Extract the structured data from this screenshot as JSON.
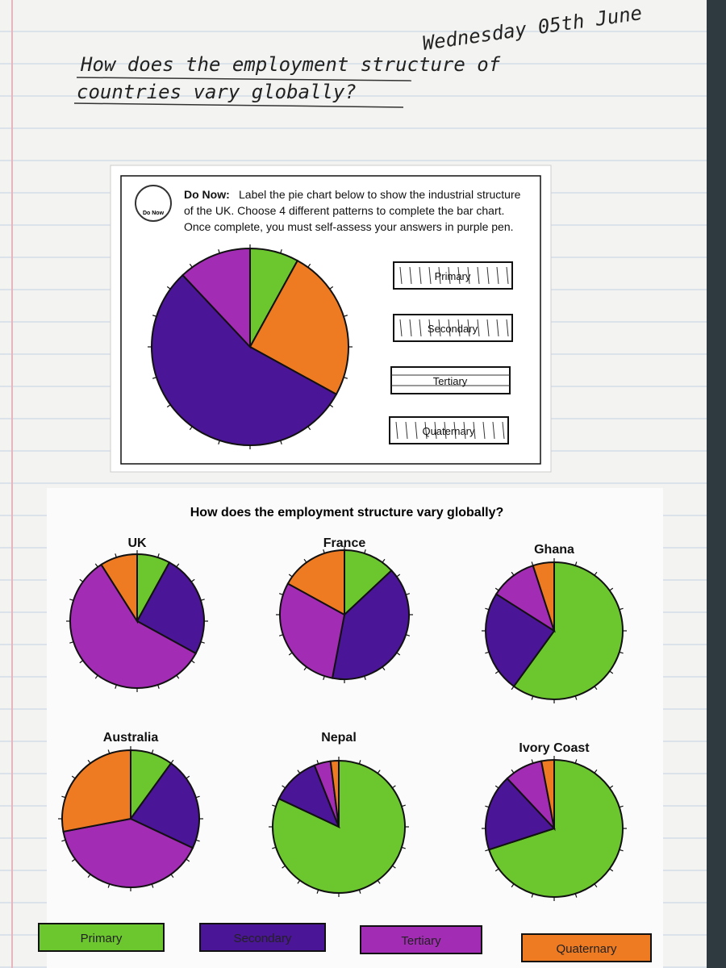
{
  "header": {
    "date": "Wednesday 05th June",
    "title_lines": [
      "How does the employment structure of",
      "countries vary globally?"
    ]
  },
  "do_now": {
    "icon_text": "Do Now",
    "label": "Do Now:",
    "lines": [
      "Label the pie chart below to show the industrial structure",
      "of the UK. Choose 4 different patterns to complete the bar chart.",
      "Once complete, you must self-assess your answers in purple pen."
    ],
    "pattern_labels": [
      "Primary",
      "Secondary",
      "Tertiary",
      "Quaternary"
    ]
  },
  "worksheet": {
    "title": "How does the employment structure vary globally?"
  },
  "legend": [
    {
      "label": "Primary",
      "color": "#6cc62e"
    },
    {
      "label": "Secondary",
      "color": "#4a1596"
    },
    {
      "label": "Tertiary",
      "color": "#a32cb4"
    },
    {
      "label": "Quaternary",
      "color": "#ee7a22"
    }
  ],
  "chart_data": [
    {
      "type": "pie",
      "values": [
        8,
        25,
        55,
        12
      ],
      "colors": [
        "#6cc62e",
        "#ee7a22",
        "#4a1596",
        "#a32cb4"
      ]
    },
    {
      "type": "pie",
      "title": "UK",
      "values": [
        8,
        25,
        58,
        9
      ],
      "colors": [
        "#6cc62e",
        "#4a1596",
        "#a32cb4",
        "#ee7a22"
      ]
    },
    {
      "type": "pie",
      "title": "France",
      "values": [
        13,
        40,
        30,
        17
      ],
      "colors": [
        "#6cc62e",
        "#4a1596",
        "#a32cb4",
        "#ee7a22"
      ]
    },
    {
      "type": "pie",
      "title": "Ghana",
      "values": [
        60,
        24,
        11,
        5
      ],
      "colors": [
        "#6cc62e",
        "#4a1596",
        "#a32cb4",
        "#ee7a22"
      ]
    },
    {
      "type": "pie",
      "title": "Australia",
      "values": [
        10,
        22,
        40,
        28
      ],
      "colors": [
        "#6cc62e",
        "#4a1596",
        "#a32cb4",
        "#ee7a22"
      ]
    },
    {
      "type": "pie",
      "title": "Nepal",
      "values": [
        82,
        12,
        4,
        2
      ],
      "colors": [
        "#6cc62e",
        "#4a1596",
        "#a32cb4",
        "#ee7a22"
      ]
    },
    {
      "type": "pie",
      "title": "Ivory Coast",
      "values": [
        70,
        18,
        9,
        3
      ],
      "colors": [
        "#6cc62e",
        "#4a1596",
        "#a32cb4",
        "#ee7a22"
      ]
    }
  ]
}
